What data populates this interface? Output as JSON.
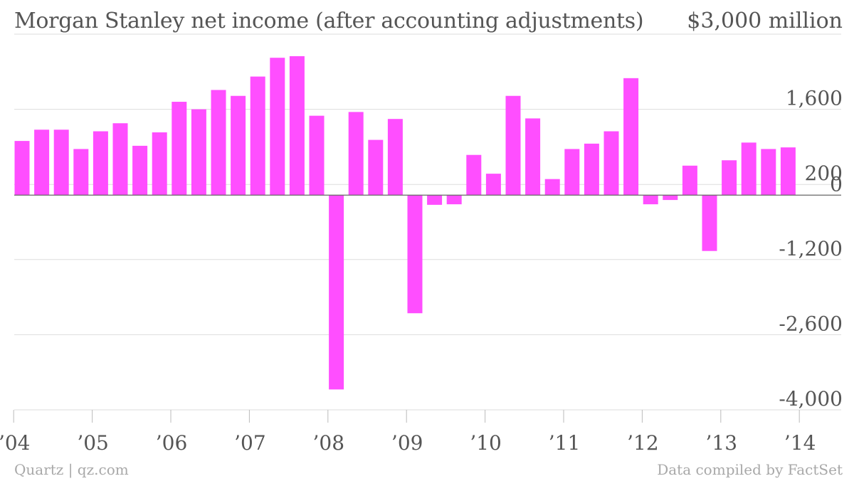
{
  "header": {
    "title": "Morgan Stanley net income (after accounting adjustments)",
    "unit_label": "$3,000 million"
  },
  "footer": {
    "source_left": "Quartz | qz.com",
    "source_right": "Data compiled by FactSet"
  },
  "colors": {
    "bar": "#ff4eff",
    "grid": "#dddddd",
    "zero_line": "#666666",
    "text": "#555555",
    "footer_text": "#a8a8a8"
  },
  "chart_data": {
    "type": "bar",
    "title": "Morgan Stanley net income (after accounting adjustments)",
    "ylabel": "$3,000 million",
    "ylim": [
      -4000,
      3000
    ],
    "grid": true,
    "y_ticks": [
      {
        "value": 1600,
        "label": "1,600"
      },
      {
        "value": 200,
        "label": "200"
      },
      {
        "value": 0,
        "label": "0"
      },
      {
        "value": -1200,
        "label": "-1,200"
      },
      {
        "value": -2600,
        "label": "-2,600"
      },
      {
        "value": -4000,
        "label": "-4,000"
      }
    ],
    "x_ticks": [
      {
        "quarter_index": 0,
        "label": "’04"
      },
      {
        "quarter_index": 4,
        "label": "’05"
      },
      {
        "quarter_index": 8,
        "label": "’06"
      },
      {
        "quarter_index": 12,
        "label": "’07"
      },
      {
        "quarter_index": 16,
        "label": "’08"
      },
      {
        "quarter_index": 20,
        "label": "’09"
      },
      {
        "quarter_index": 24,
        "label": "’10"
      },
      {
        "quarter_index": 28,
        "label": "’11"
      },
      {
        "quarter_index": 32,
        "label": "’12"
      },
      {
        "quarter_index": 36,
        "label": "’13"
      },
      {
        "quarter_index": 40,
        "label": "’14"
      }
    ],
    "categories": [
      "Q1 2004",
      "Q2 2004",
      "Q3 2004",
      "Q4 2004",
      "Q1 2005",
      "Q2 2005",
      "Q3 2005",
      "Q4 2005",
      "Q1 2006",
      "Q2 2006",
      "Q3 2006",
      "Q4 2006",
      "Q1 2007",
      "Q2 2007",
      "Q3 2007",
      "Q4 2007",
      "Q1 2008",
      "Q2 2008",
      "Q3 2008",
      "Q4 2008",
      "Q1 2009",
      "Q2 2009",
      "Q3 2009",
      "Q4 2009",
      "Q1 2010",
      "Q2 2010",
      "Q3 2010",
      "Q4 2010",
      "Q1 2011",
      "Q2 2011",
      "Q3 2011",
      "Q4 2011",
      "Q1 2012",
      "Q2 2012",
      "Q3 2012",
      "Q4 2012",
      "Q1 2013",
      "Q2 2013",
      "Q3 2013",
      "Q4 2013"
    ],
    "values": [
      1010,
      1220,
      1220,
      860,
      1190,
      1340,
      920,
      1170,
      1740,
      1600,
      1960,
      1850,
      2210,
      2560,
      2590,
      1480,
      -3620,
      1550,
      1030,
      1420,
      -2200,
      -180,
      -170,
      750,
      400,
      1850,
      1430,
      300,
      860,
      960,
      1190,
      2180,
      -170,
      -90,
      550,
      -1040,
      650,
      980,
      860,
      890
    ]
  }
}
